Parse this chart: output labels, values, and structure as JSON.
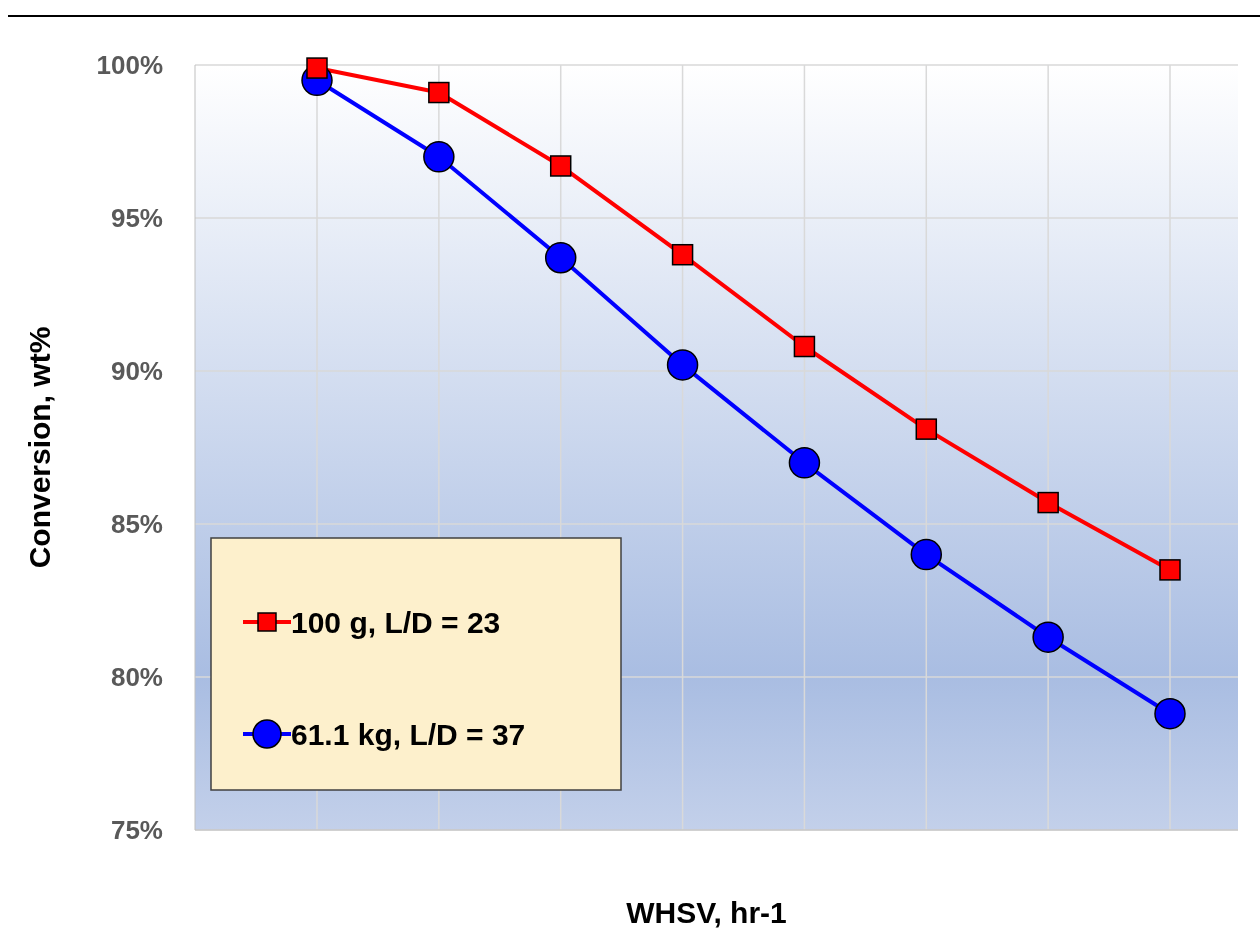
{
  "chart_data": {
    "type": "line",
    "xlabel": "WHSV, hr-1",
    "ylabel": "Conversion, wt%",
    "categories": [
      null,
      null,
      null,
      null,
      null,
      null,
      null,
      null
    ],
    "ylim": [
      75,
      100
    ],
    "yticks": [
      {
        "value": 75,
        "label": "75%"
      },
      {
        "value": 80,
        "label": "80%"
      },
      {
        "value": 85,
        "label": "85%"
      },
      {
        "value": 90,
        "label": "90%"
      },
      {
        "value": 95,
        "label": "95%"
      },
      {
        "value": 100,
        "label": "100%"
      }
    ],
    "grid": true,
    "legend": "bottom left",
    "series": [
      {
        "name": "100 g, L/D = 23",
        "color": "#ff0000",
        "marker": "square",
        "values": [
          99.9,
          99.1,
          96.7,
          93.8,
          90.8,
          88.1,
          85.7,
          83.5
        ]
      },
      {
        "name": "61.1 kg, L/D = 37",
        "color": "#0000ff",
        "marker": "circle",
        "values": [
          99.5,
          97.0,
          93.7,
          90.2,
          87.0,
          84.0,
          81.3,
          78.8
        ]
      }
    ]
  }
}
